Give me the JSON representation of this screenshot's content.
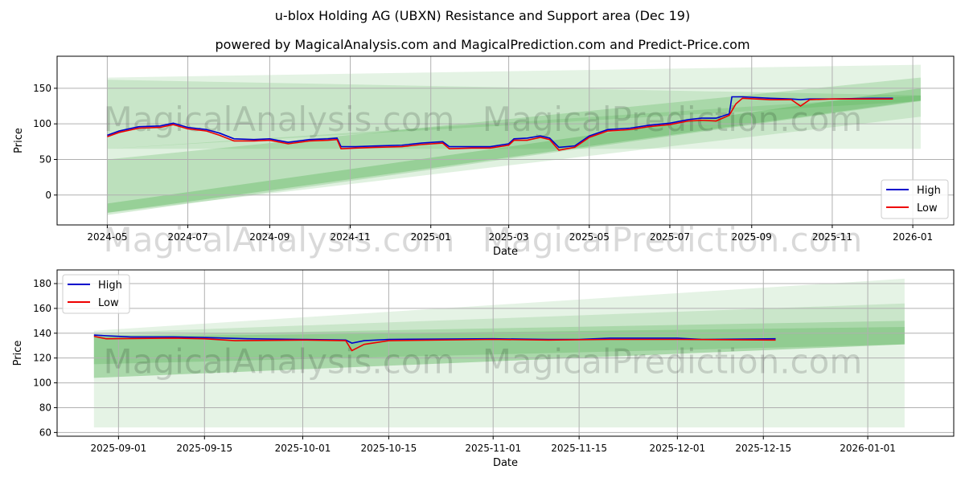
{
  "chart_data": [
    {
      "type": "line",
      "title": "u-blox Holding AG (UBXN) Resistance and Support area (Dec 19)",
      "subtitle": "powered by MagicalAnalysis.com and MagicalPrediction.com and Predict-Price.com",
      "xlabel": "Date",
      "ylabel": "Price",
      "xlim": [
        "2024-03-24",
        "2026-02-01"
      ],
      "ylim": [
        -42,
        195
      ],
      "xticks": [
        "2024-05",
        "2024-07",
        "2024-09",
        "2024-11",
        "2025-01",
        "2025-03",
        "2025-05",
        "2025-07",
        "2025-09",
        "2025-11",
        "2026-01"
      ],
      "yticks": [
        0,
        50,
        100,
        150
      ],
      "grid": true,
      "legend": "bottom-right",
      "watermarks": [
        "MagicalAnalysis.com",
        "MagicalPrediction.com"
      ],
      "bands": {
        "start": "2024-05-01",
        "end": "2026-01-07",
        "items": [
          {
            "lo0": 65,
            "hi0": 165,
            "lo1": 65,
            "hi1": 183,
            "opacity": 0.13
          },
          {
            "lo0": 65,
            "hi0": 162,
            "lo1": 132,
            "hi1": 140,
            "opacity": 0.15
          },
          {
            "lo0": -28,
            "hi0": 50,
            "lo1": 132,
            "hi1": 165,
            "opacity": 0.2
          },
          {
            "lo0": -25,
            "hi0": -12,
            "lo1": 133,
            "hi1": 150,
            "opacity": 0.25
          },
          {
            "lo0": -25,
            "hi0": 65,
            "lo1": 110,
            "hi1": 140,
            "opacity": 0.15
          }
        ]
      },
      "series": [
        {
          "name": "High",
          "color": "#0000cc",
          "points": [
            [
              "2024-05-01",
              84
            ],
            [
              "2024-05-10",
              90
            ],
            [
              "2024-05-25",
              96
            ],
            [
              "2024-06-10",
              97
            ],
            [
              "2024-06-20",
              101
            ],
            [
              "2024-07-01",
              95
            ],
            [
              "2024-07-15",
              92
            ],
            [
              "2024-07-25",
              87
            ],
            [
              "2024-08-05",
              79
            ],
            [
              "2024-08-20",
              78
            ],
            [
              "2024-09-01",
              79
            ],
            [
              "2024-09-15",
              74
            ],
            [
              "2024-10-01",
              78
            ],
            [
              "2024-10-15",
              79
            ],
            [
              "2024-10-22",
              80
            ],
            [
              "2024-10-25",
              68
            ],
            [
              "2024-11-05",
              68
            ],
            [
              "2024-11-20",
              69
            ],
            [
              "2024-12-10",
              70
            ],
            [
              "2024-12-25",
              73
            ],
            [
              "2025-01-10",
              75
            ],
            [
              "2025-01-15",
              68
            ],
            [
              "2025-02-01",
              68
            ],
            [
              "2025-02-15",
              68
            ],
            [
              "2025-03-01",
              72
            ],
            [
              "2025-03-05",
              79
            ],
            [
              "2025-03-15",
              80
            ],
            [
              "2025-03-25",
              83
            ],
            [
              "2025-04-01",
              80
            ],
            [
              "2025-04-08",
              67
            ],
            [
              "2025-04-20",
              69
            ],
            [
              "2025-05-01",
              83
            ],
            [
              "2025-05-15",
              92
            ],
            [
              "2025-06-01",
              94
            ],
            [
              "2025-06-15",
              98
            ],
            [
              "2025-07-01",
              101
            ],
            [
              "2025-07-15",
              106
            ],
            [
              "2025-07-25",
              108
            ],
            [
              "2025-08-05",
              108
            ],
            [
              "2025-08-15",
              114
            ],
            [
              "2025-08-17",
              138
            ],
            [
              "2025-08-25",
              138
            ],
            [
              "2025-09-15",
              136
            ],
            [
              "2025-10-01",
              135
            ],
            [
              "2025-10-08",
              134
            ],
            [
              "2025-10-15",
              135
            ],
            [
              "2025-11-01",
              135
            ],
            [
              "2025-12-01",
              136
            ],
            [
              "2025-12-17",
              136
            ]
          ]
        },
        {
          "name": "Low",
          "color": "#ee0000",
          "points": [
            [
              "2024-05-01",
              82
            ],
            [
              "2024-05-10",
              88
            ],
            [
              "2024-05-25",
              94
            ],
            [
              "2024-06-10",
              95
            ],
            [
              "2024-06-20",
              99
            ],
            [
              "2024-07-01",
              93
            ],
            [
              "2024-07-15",
              90
            ],
            [
              "2024-07-25",
              84
            ],
            [
              "2024-08-05",
              76
            ],
            [
              "2024-08-20",
              76
            ],
            [
              "2024-09-01",
              77
            ],
            [
              "2024-09-15",
              72
            ],
            [
              "2024-10-01",
              76
            ],
            [
              "2024-10-15",
              77
            ],
            [
              "2024-10-22",
              78
            ],
            [
              "2024-10-25",
              65
            ],
            [
              "2024-11-05",
              66
            ],
            [
              "2024-11-20",
              67
            ],
            [
              "2024-12-10",
              68
            ],
            [
              "2024-12-25",
              71
            ],
            [
              "2025-01-10",
              73
            ],
            [
              "2025-01-15",
              65
            ],
            [
              "2025-02-01",
              66
            ],
            [
              "2025-02-15",
              66
            ],
            [
              "2025-03-01",
              70
            ],
            [
              "2025-03-05",
              77
            ],
            [
              "2025-03-15",
              77
            ],
            [
              "2025-03-25",
              81
            ],
            [
              "2025-04-01",
              78
            ],
            [
              "2025-04-08",
              63
            ],
            [
              "2025-04-20",
              67
            ],
            [
              "2025-05-01",
              81
            ],
            [
              "2025-05-15",
              90
            ],
            [
              "2025-06-01",
              92
            ],
            [
              "2025-06-15",
              96
            ],
            [
              "2025-07-01",
              99
            ],
            [
              "2025-07-15",
              104
            ],
            [
              "2025-07-25",
              105
            ],
            [
              "2025-08-05",
              104
            ],
            [
              "2025-08-15",
              112
            ],
            [
              "2025-08-20",
              128
            ],
            [
              "2025-08-25",
              136
            ],
            [
              "2025-09-15",
              134
            ],
            [
              "2025-10-01",
              134
            ],
            [
              "2025-10-08",
              125
            ],
            [
              "2025-10-15",
              134
            ],
            [
              "2025-11-01",
              135
            ],
            [
              "2025-12-01",
              135
            ],
            [
              "2025-12-17",
              135
            ]
          ]
        }
      ]
    },
    {
      "type": "line",
      "xlabel": "Date",
      "ylabel": "Price",
      "xlim": [
        "2025-08-22",
        "2026-01-15"
      ],
      "ylim": [
        57,
        191
      ],
      "xticks": [
        "2025-09-01",
        "2025-09-15",
        "2025-10-01",
        "2025-10-15",
        "2025-11-01",
        "2025-11-15",
        "2025-12-01",
        "2025-12-15",
        "2026-01-01"
      ],
      "yticks": [
        60,
        80,
        100,
        120,
        140,
        160,
        180
      ],
      "grid": true,
      "legend": "top-left",
      "watermarks": [
        "MagicalAnalysis.com",
        "MagicalPrediction.com"
      ],
      "bands": {
        "start": "2025-08-28",
        "end": "2026-01-07",
        "items": [
          {
            "lo0": 64,
            "hi0": 142,
            "lo1": 64,
            "hi1": 184,
            "opacity": 0.12
          },
          {
            "lo0": 104,
            "hi0": 140,
            "lo1": 131,
            "hi1": 164,
            "opacity": 0.15
          },
          {
            "lo0": 104,
            "hi0": 138,
            "lo1": 131,
            "hi1": 150,
            "opacity": 0.2
          },
          {
            "lo0": 115,
            "hi0": 137,
            "lo1": 131,
            "hi1": 145,
            "opacity": 0.2
          }
        ]
      },
      "series": [
        {
          "name": "High",
          "color": "#0000cc",
          "points": [
            [
              "2025-08-28",
              138.5
            ],
            [
              "2025-09-03",
              137
            ],
            [
              "2025-09-10",
              137
            ],
            [
              "2025-09-15",
              136.5
            ],
            [
              "2025-09-22",
              135.5
            ],
            [
              "2025-10-01",
              135
            ],
            [
              "2025-10-08",
              134.5
            ],
            [
              "2025-10-09",
              132
            ],
            [
              "2025-10-11",
              134
            ],
            [
              "2025-10-15",
              135
            ],
            [
              "2025-11-01",
              135.5
            ],
            [
              "2025-11-10",
              135
            ],
            [
              "2025-11-15",
              135
            ],
            [
              "2025-11-20",
              136
            ],
            [
              "2025-12-01",
              136
            ],
            [
              "2025-12-05",
              135
            ],
            [
              "2025-12-17",
              135.5
            ]
          ]
        },
        {
          "name": "Low",
          "color": "#ee0000",
          "points": [
            [
              "2025-08-28",
              137.5
            ],
            [
              "2025-08-30",
              135.5
            ],
            [
              "2025-09-10",
              136
            ],
            [
              "2025-09-15",
              135.5
            ],
            [
              "2025-09-20",
              134
            ],
            [
              "2025-10-01",
              134.5
            ],
            [
              "2025-10-08",
              134
            ],
            [
              "2025-10-09",
              126
            ],
            [
              "2025-10-11",
              131
            ],
            [
              "2025-10-15",
              134
            ],
            [
              "2025-11-01",
              135
            ],
            [
              "2025-11-10",
              134.5
            ],
            [
              "2025-11-20",
              135
            ],
            [
              "2025-12-01",
              135
            ],
            [
              "2025-12-17",
              134.5
            ]
          ]
        }
      ]
    }
  ]
}
